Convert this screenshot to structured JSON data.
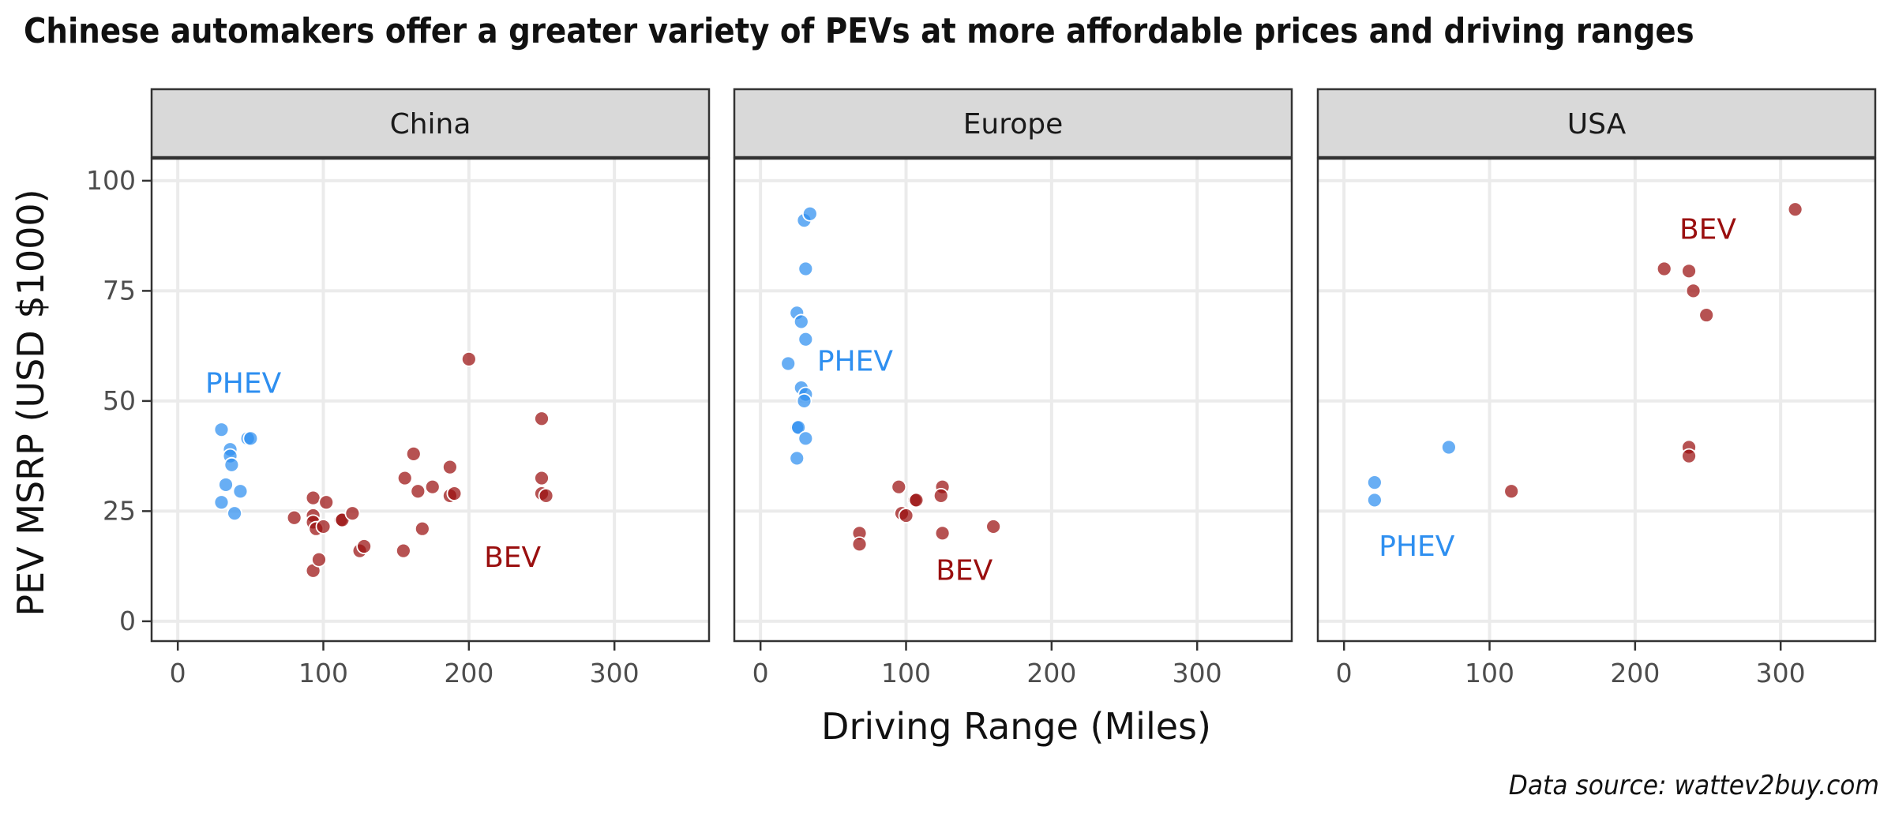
{
  "title": "Chinese automakers offer a greater variety of PEVs at more affordable prices and driving ranges",
  "caption": "Data source: wattev2buy.com",
  "colors": {
    "PHEV": "#2e8ff0",
    "BEV": "#9a0f0f",
    "grid": "#ebebeb",
    "strip": "#d9d9d9",
    "panel_border": "#333333"
  },
  "chart_data": {
    "type": "scatter",
    "xlabel": "Driving Range (Miles)",
    "ylabel": "PEV MSRP (USD $1000)",
    "xlim": [
      -18,
      365
    ],
    "ylim": [
      -4.5,
      105
    ],
    "x_ticks": [
      0,
      100,
      200,
      300
    ],
    "y_ticks": [
      0,
      25,
      50,
      75,
      100
    ],
    "grid": true,
    "legend": "none",
    "panels": [
      {
        "name": "China",
        "annotations": [
          {
            "text": "PHEV",
            "x": 45,
            "y": 54,
            "series": "PHEV"
          },
          {
            "text": "BEV",
            "x": 230,
            "y": 14.5,
            "series": "BEV"
          }
        ],
        "series": [
          {
            "name": "PHEV",
            "points": [
              [
                30,
                43.5
              ],
              [
                30,
                27
              ],
              [
                33,
                31
              ],
              [
                36,
                39
              ],
              [
                36,
                37.5
              ],
              [
                37,
                35.5
              ],
              [
                39,
                24.5
              ],
              [
                43,
                29.5
              ],
              [
                48,
                41.5
              ],
              [
                50,
                41.5
              ]
            ]
          },
          {
            "name": "BEV",
            "points": [
              [
                80,
                23.5
              ],
              [
                93,
                28
              ],
              [
                93,
                24
              ],
              [
                93,
                22.5
              ],
              [
                93,
                11.5
              ],
              [
                95,
                21
              ],
              [
                97,
                14
              ],
              [
                100,
                21.5
              ],
              [
                102,
                27
              ],
              [
                112,
                23
              ],
              [
                113,
                23
              ],
              [
                120,
                24.5
              ],
              [
                125,
                16
              ],
              [
                128,
                17
              ],
              [
                155,
                16
              ],
              [
                156,
                32.5
              ],
              [
                162,
                38
              ],
              [
                165,
                29.5
              ],
              [
                168,
                21
              ],
              [
                175,
                30.5
              ],
              [
                187,
                35
              ],
              [
                187,
                28.5
              ],
              [
                190,
                29
              ],
              [
                200,
                59.5
              ],
              [
                250,
                46
              ],
              [
                250,
                32.5
              ],
              [
                250,
                29
              ],
              [
                253,
                28.5
              ]
            ]
          }
        ]
      },
      {
        "name": "Europe",
        "annotations": [
          {
            "text": "PHEV",
            "x": 65,
            "y": 59,
            "series": "PHEV"
          },
          {
            "text": "BEV",
            "x": 140,
            "y": 11.5,
            "series": "BEV"
          }
        ],
        "series": [
          {
            "name": "PHEV",
            "points": [
              [
                19,
                58.5
              ],
              [
                25,
                70
              ],
              [
                25,
                44
              ],
              [
                26,
                44
              ],
              [
                25,
                37
              ],
              [
                28,
                68
              ],
              [
                28,
                53
              ],
              [
                31,
                51.5
              ],
              [
                30,
                50
              ],
              [
                31,
                41.5
              ],
              [
                30,
                91
              ],
              [
                31,
                80
              ],
              [
                31,
                64
              ],
              [
                34,
                92.5
              ]
            ]
          },
          {
            "name": "BEV",
            "points": [
              [
                68,
                20
              ],
              [
                68,
                17.5
              ],
              [
                95,
                30.5
              ],
              [
                97,
                24.5
              ],
              [
                100,
                24
              ],
              [
                106,
                27.5
              ],
              [
                107,
                27.5
              ],
              [
                125,
                30.5
              ],
              [
                124,
                28.5
              ],
              [
                125,
                20
              ],
              [
                160,
                21.5
              ]
            ]
          }
        ]
      },
      {
        "name": "USA",
        "annotations": [
          {
            "text": "PHEV",
            "x": 50,
            "y": 17,
            "series": "PHEV"
          },
          {
            "text": "BEV",
            "x": 250,
            "y": 89,
            "series": "BEV"
          }
        ],
        "series": [
          {
            "name": "PHEV",
            "points": [
              [
                21,
                31.5
              ],
              [
                21,
                27.5
              ],
              [
                72,
                39.5
              ]
            ]
          },
          {
            "name": "BEV",
            "points": [
              [
                115,
                29.5
              ],
              [
                220,
                80
              ],
              [
                237,
                79.5
              ],
              [
                240,
                75
              ],
              [
                237,
                39.5
              ],
              [
                237,
                37.5
              ],
              [
                249,
                69.5
              ],
              [
                310,
                93.5
              ]
            ]
          }
        ]
      }
    ]
  }
}
